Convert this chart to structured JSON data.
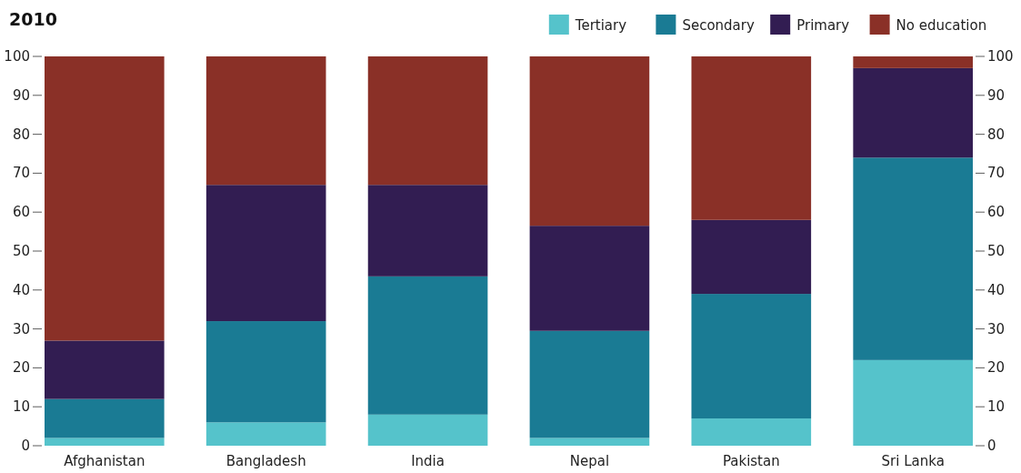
{
  "chart_data": {
    "type": "bar",
    "title": "2010",
    "stacked": true,
    "legend": "top right",
    "categories": [
      "Afghanistan",
      "Bangladesh",
      "India",
      "Nepal",
      "Pakistan",
      "Sri Lanka"
    ],
    "series": [
      {
        "name": "Tertiary",
        "color": "#55c3cb",
        "values": [
          2,
          6,
          8,
          2,
          7,
          22
        ]
      },
      {
        "name": "Secondary",
        "color": "#1a7b94",
        "values": [
          10,
          26,
          35.5,
          27.5,
          32,
          52
        ]
      },
      {
        "name": "Primary",
        "color": "#321d52",
        "values": [
          15,
          35,
          23.5,
          27,
          19,
          23
        ]
      },
      {
        "name": "No education",
        "color": "#8a3027",
        "values": [
          73,
          33,
          33,
          43.5,
          42,
          3
        ]
      }
    ],
    "ylim": [
      0,
      100
    ],
    "yticks": [
      0,
      10,
      20,
      30,
      40,
      50,
      60,
      70,
      80,
      90,
      100
    ],
    "y2lim": [
      0,
      100
    ],
    "y2ticks": [
      0,
      10,
      20,
      30,
      40,
      50,
      60,
      70,
      80,
      90,
      100
    ]
  }
}
